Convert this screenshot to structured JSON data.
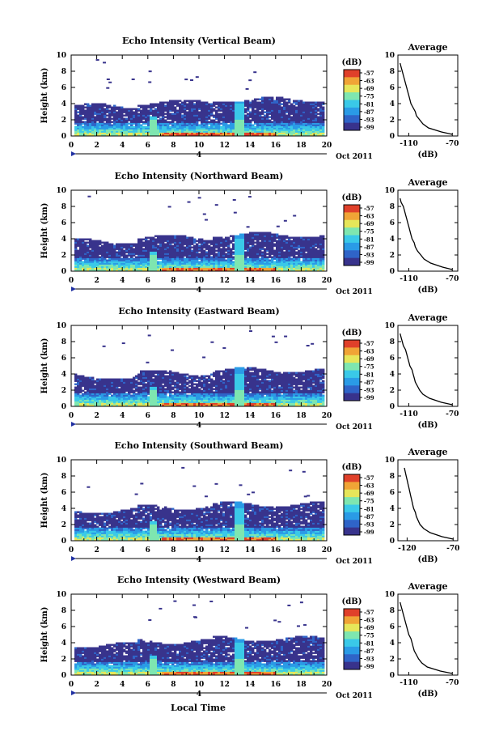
{
  "colors": {
    "colorbar": [
      "#38338c",
      "#2f64c8",
      "#2a9be6",
      "#3ac9e8",
      "#7ee6b0",
      "#e6e65a",
      "#f0a436",
      "#e0402a"
    ],
    "background": "#ffffff",
    "axis": "#000000"
  },
  "figure": {
    "xlabel": "Local Time",
    "date_label": "Oct 2011",
    "day_marker": "4"
  },
  "chart_data": [
    {
      "type": "heatmap",
      "title": "Echo Intensity (Vertical Beam)",
      "xlabel": "Local Time",
      "ylabel": "Height (km)",
      "x_ticks": [
        "0",
        "2",
        "4",
        "6",
        "8",
        "10",
        "12",
        "14",
        "16",
        "18",
        "20"
      ],
      "y_ticks": [
        "0",
        "2",
        "4",
        "6",
        "8",
        "10"
      ],
      "xlim": [
        0,
        20
      ],
      "ylim": [
        0,
        10
      ],
      "colorbar": {
        "label": "(dB)",
        "ticks": [
          "-57",
          "-63",
          "-69",
          "-75",
          "-81",
          "-87",
          "-93",
          "-99"
        ]
      },
      "profile": {
        "title": "Average",
        "xlabel": "(dB)",
        "x_ticks": [
          "-110",
          "-70"
        ],
        "y_ticks": [
          "0",
          "2",
          "4",
          "6",
          "8",
          "10"
        ],
        "xlim": [
          -120,
          -65
        ],
        "ylim": [
          0,
          10
        ],
        "heights": [
          0.2,
          0.5,
          1.0,
          1.5,
          2.0,
          2.5,
          3.0,
          3.5,
          4.0,
          4.5,
          5.0,
          5.5,
          6.0,
          6.5,
          7.0,
          7.5,
          8.0,
          8.5,
          9.0
        ],
        "values": [
          -70,
          -80,
          -92,
          -97,
          -100,
          -103,
          -104,
          -106,
          -108,
          -109,
          -110,
          -111,
          -112,
          -113,
          -114,
          -115,
          -116,
          -117,
          -118
        ]
      }
    },
    {
      "type": "heatmap",
      "title": "Echo Intensity (Northward Beam)",
      "xlabel": "Local Time",
      "ylabel": "Height (km)",
      "x_ticks": [
        "0",
        "2",
        "4",
        "6",
        "8",
        "10",
        "12",
        "14",
        "16",
        "18",
        "20"
      ],
      "y_ticks": [
        "0",
        "2",
        "4",
        "6",
        "8",
        "10"
      ],
      "xlim": [
        0,
        20
      ],
      "ylim": [
        0,
        10
      ],
      "colorbar": {
        "label": "(dB)",
        "ticks": [
          "-57",
          "-63",
          "-69",
          "-75",
          "-81",
          "-87",
          "-93",
          "-99"
        ]
      },
      "profile": {
        "title": "Average",
        "xlabel": "(dB)",
        "x_ticks": [
          "-110",
          "-70"
        ],
        "y_ticks": [
          "0",
          "2",
          "4",
          "6",
          "8",
          "10"
        ],
        "xlim": [
          -120,
          -65
        ],
        "ylim": [
          0,
          10
        ],
        "heights": [
          0.2,
          0.5,
          1.0,
          1.5,
          2.0,
          2.5,
          3.0,
          3.5,
          4.0,
          4.5,
          5.0,
          5.5,
          6.0,
          6.5,
          7.0,
          7.5,
          8.0,
          8.5,
          9.0
        ],
        "values": [
          -70,
          -79,
          -90,
          -96,
          -99,
          -102,
          -104,
          -105,
          -107,
          -108,
          -109,
          -110,
          -111,
          -112,
          -113,
          -114,
          -115,
          -117,
          -118
        ]
      }
    },
    {
      "type": "heatmap",
      "title": "Echo Intensity (Eastward Beam)",
      "xlabel": "Local Time",
      "ylabel": "Height (km)",
      "x_ticks": [
        "0",
        "2",
        "4",
        "6",
        "8",
        "10",
        "12",
        "14",
        "16",
        "18",
        "20"
      ],
      "y_ticks": [
        "0",
        "2",
        "4",
        "6",
        "8",
        "10"
      ],
      "xlim": [
        0,
        20
      ],
      "ylim": [
        0,
        10
      ],
      "colorbar": {
        "label": "(dB)",
        "ticks": [
          "-57",
          "-63",
          "-69",
          "-75",
          "-81",
          "-87",
          "-93",
          "-99"
        ]
      },
      "profile": {
        "title": "Average",
        "xlabel": "(dB)",
        "x_ticks": [
          "-110",
          "-70"
        ],
        "y_ticks": [
          "0",
          "2",
          "4",
          "6",
          "8",
          "10"
        ],
        "xlim": [
          -120,
          -65
        ],
        "ylim": [
          0,
          10
        ],
        "heights": [
          0.2,
          0.5,
          1.0,
          1.5,
          2.0,
          2.5,
          3.0,
          3.5,
          4.0,
          4.5,
          5.0,
          5.5,
          6.0,
          6.5,
          7.0,
          7.5,
          8.0,
          8.5,
          9.0
        ],
        "values": [
          -70,
          -80,
          -91,
          -97,
          -100,
          -102,
          -104,
          -105,
          -106,
          -107,
          -109,
          -110,
          -111,
          -112,
          -113,
          -115,
          -116,
          -117,
          -118
        ]
      }
    },
    {
      "type": "heatmap",
      "title": "Echo Intensity (Southward Beam)",
      "xlabel": "Local Time",
      "ylabel": "Height (km)",
      "x_ticks": [
        "0",
        "2",
        "4",
        "6",
        "8",
        "10",
        "12",
        "14",
        "16",
        "18",
        "20"
      ],
      "y_ticks": [
        "0",
        "2",
        "4",
        "6",
        "8",
        "10"
      ],
      "xlim": [
        0,
        20
      ],
      "ylim": [
        0,
        10
      ],
      "colorbar": {
        "label": "(dB)",
        "ticks": [
          "-57",
          "-63",
          "-69",
          "-75",
          "-81",
          "-87",
          "-93",
          "-99"
        ]
      },
      "profile": {
        "title": "Average",
        "xlabel": "(dB)",
        "x_ticks": [
          "-120",
          "-70"
        ],
        "y_ticks": [
          "0",
          "2",
          "4",
          "6",
          "8",
          "10"
        ],
        "xlim": [
          -130,
          -65
        ],
        "ylim": [
          0,
          10
        ],
        "heights": [
          0.2,
          0.5,
          1.0,
          1.5,
          2.0,
          2.5,
          3.0,
          3.5,
          4.0,
          4.5,
          5.0,
          5.5,
          6.0,
          6.5,
          7.0,
          7.5,
          8.0,
          8.5,
          9.0
        ],
        "values": [
          -70,
          -82,
          -95,
          -102,
          -106,
          -108,
          -110,
          -111,
          -113,
          -114,
          -115,
          -116,
          -117,
          -118,
          -119,
          -120,
          -121,
          -122,
          -123
        ]
      }
    },
    {
      "type": "heatmap",
      "title": "Echo Intensity (Westward Beam)",
      "xlabel": "Local Time",
      "ylabel": "Height (km)",
      "x_ticks": [
        "0",
        "2",
        "4",
        "6",
        "8",
        "10",
        "12",
        "14",
        "16",
        "18",
        "20"
      ],
      "y_ticks": [
        "0",
        "2",
        "4",
        "6",
        "8",
        "10"
      ],
      "xlim": [
        0,
        20
      ],
      "ylim": [
        0,
        10
      ],
      "colorbar": {
        "label": "(dB)",
        "ticks": [
          "-57",
          "-63",
          "-69",
          "-75",
          "-81",
          "-87",
          "-93",
          "-99"
        ]
      },
      "profile": {
        "title": "Average",
        "xlabel": "(dB)",
        "x_ticks": [
          "-110",
          "-70"
        ],
        "y_ticks": [
          "0",
          "2",
          "4",
          "6",
          "8",
          "10"
        ],
        "xlim": [
          -120,
          -65
        ],
        "ylim": [
          0,
          10
        ],
        "heights": [
          0.2,
          0.5,
          1.0,
          1.5,
          2.0,
          2.5,
          3.0,
          3.5,
          4.0,
          4.5,
          5.0,
          5.5,
          6.0,
          6.5,
          7.0,
          7.5,
          8.0,
          8.5,
          9.0
        ],
        "values": [
          -70,
          -81,
          -93,
          -98,
          -101,
          -103,
          -105,
          -106,
          -107,
          -108,
          -110,
          -111,
          -112,
          -113,
          -114,
          -115,
          -116,
          -117,
          -118
        ]
      }
    }
  ]
}
